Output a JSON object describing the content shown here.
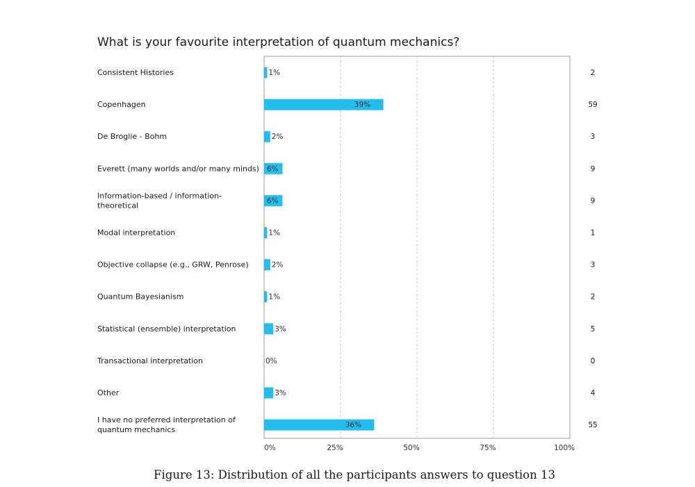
{
  "chart_data": {
    "type": "bar",
    "orientation": "horizontal",
    "title": "What is your favourite interpretation of quantum mechanics?",
    "categories": [
      [
        "Consistent Histories"
      ],
      [
        "Copenhagen"
      ],
      [
        "De Broglie - Bohm"
      ],
      [
        "Everett (many worlds and/or many minds)"
      ],
      [
        "Information-based / information-",
        "theoretical"
      ],
      [
        "Modal interpretation"
      ],
      [
        "Objective collapse (e.g., GRW, Penrose)"
      ],
      [
        "Quantum Bayesianism"
      ],
      [
        "Statistical (ensemble) interpretation"
      ],
      [
        "Transactional interpretation"
      ],
      [
        "Other"
      ],
      [
        "I have no preferred interpretation of",
        "quantum mechanics"
      ]
    ],
    "values": [
      1,
      39,
      2,
      6,
      6,
      1,
      2,
      1,
      3,
      0,
      3,
      36
    ],
    "value_labels": [
      "1%",
      "39%",
      "2%",
      "6%",
      "6%",
      "1%",
      "2%",
      "1%",
      "3%",
      "0%",
      "3%",
      "36%"
    ],
    "counts": [
      "2",
      "59",
      "3",
      "9",
      "9",
      "1",
      "3",
      "2",
      "5",
      "0",
      "4",
      "55"
    ],
    "xlim": [
      0,
      100
    ],
    "xticks": [
      0,
      25,
      50,
      75,
      100
    ],
    "xtick_labels": [
      "0%",
      "25%",
      "50%",
      "75%",
      "100%"
    ],
    "xlabel": "",
    "ylabel": "",
    "grid": true,
    "bar_color": "#22bfee"
  },
  "caption": "Figure 13: Distribution of all the participants answers to question 13"
}
